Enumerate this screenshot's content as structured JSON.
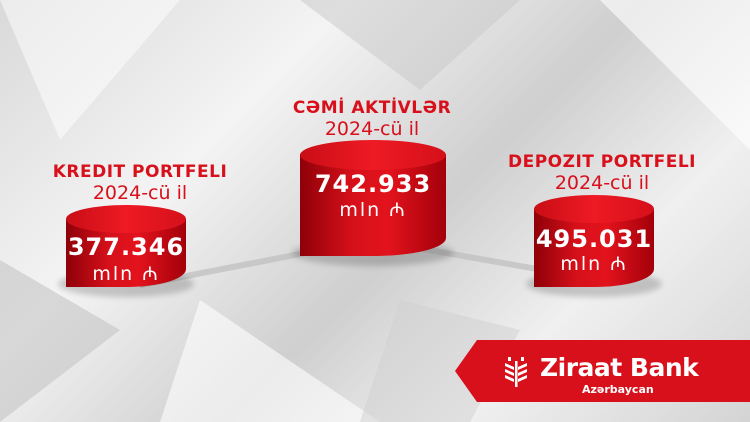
{
  "brand_color": "#d8101c",
  "items": [
    {
      "title": "KREDIT PORTFELI",
      "year": "2024-cü il",
      "value": "377.346",
      "unit": "mln ₼"
    },
    {
      "title": "CƏMİ AKTİVLƏR",
      "year": "2024-cü il",
      "value": "742.933",
      "unit": "mln ₼"
    },
    {
      "title": "DEPOZIT PORTFELI",
      "year": "2024-cü il",
      "value": "495.031",
      "unit": "mln ₼"
    }
  ],
  "logo": {
    "name": "Ziraat Bank",
    "subtitle": "Azərbaycan",
    "icon": "wheat-icon"
  }
}
